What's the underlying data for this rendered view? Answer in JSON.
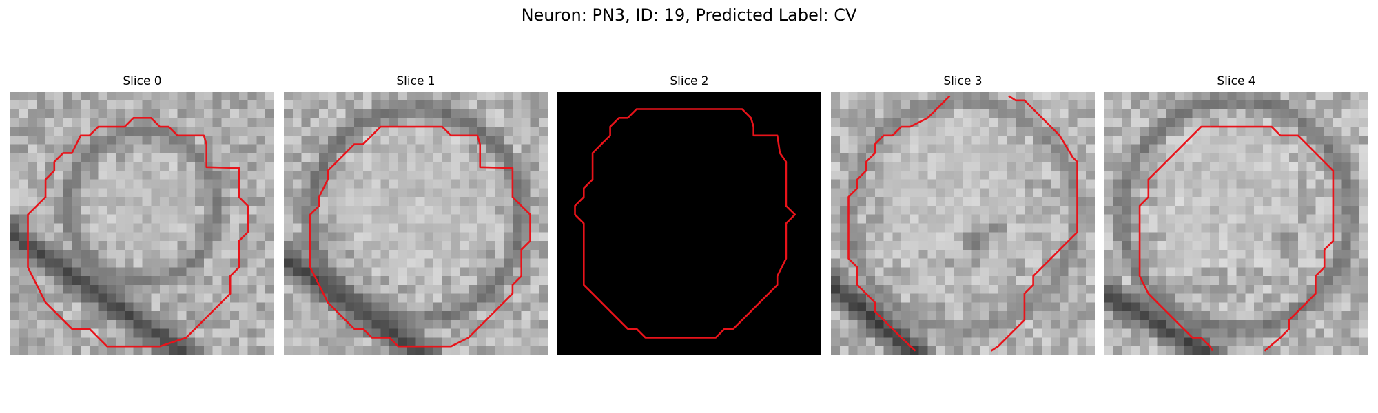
{
  "figure": {
    "title": "Neuron: PN3, ID: 19, Predicted Label: CV"
  },
  "contour_color": "#e8131a",
  "panels": [
    {
      "label": "Slice 0",
      "seed": 11,
      "base": 175,
      "darkBands": [
        {
          "type": "diag",
          "ax": 0,
          "ay": 16,
          "bx": 20,
          "by": 30,
          "w": 2.4,
          "val": 45
        },
        {
          "type": "ring",
          "cx": 15,
          "cy": 13,
          "r": 8.5,
          "w": 1.5,
          "val": 110
        }
      ],
      "brightCenter": {
        "cx": 15,
        "cy": 13,
        "r": 6,
        "val": 200
      },
      "contour": [
        [
          17,
          4
        ],
        [
          18,
          4
        ],
        [
          19,
          5
        ],
        [
          22,
          5
        ],
        [
          22.3,
          6
        ],
        [
          22.3,
          8.6
        ],
        [
          26,
          8.7
        ],
        [
          26,
          12
        ],
        [
          27,
          13
        ],
        [
          27,
          16
        ],
        [
          26,
          17
        ],
        [
          26,
          20
        ],
        [
          25,
          21
        ],
        [
          25,
          23
        ],
        [
          20,
          28
        ],
        [
          17,
          29
        ],
        [
          14,
          29
        ],
        [
          11,
          29
        ],
        [
          10,
          28
        ],
        [
          9,
          27
        ],
        [
          7,
          27
        ],
        [
          4,
          24
        ],
        [
          3,
          22
        ],
        [
          2,
          20
        ],
        [
          2,
          17
        ],
        [
          2,
          14
        ],
        [
          3,
          13
        ],
        [
          4,
          12
        ],
        [
          4,
          10
        ],
        [
          5,
          9
        ],
        [
          5,
          8
        ],
        [
          6,
          7
        ],
        [
          7,
          7
        ],
        [
          8,
          5
        ],
        [
          9,
          5
        ],
        [
          10,
          4
        ],
        [
          13,
          4
        ],
        [
          14,
          3
        ],
        [
          15,
          3
        ],
        [
          16,
          3
        ]
      ]
    },
    {
      "label": "Slice 1",
      "seed": 23,
      "base": 178,
      "darkBands": [
        {
          "type": "diag",
          "ax": 0,
          "ay": 19,
          "bx": 16,
          "by": 30,
          "w": 2.4,
          "val": 40
        },
        {
          "type": "ring",
          "cx": 15,
          "cy": 14,
          "r": 12,
          "w": 1.6,
          "val": 95
        }
      ],
      "brightCenter": {
        "cx": 15,
        "cy": 13,
        "r": 9,
        "val": 205
      },
      "contour": [
        [
          11,
          4
        ],
        [
          18,
          4
        ],
        [
          19,
          5
        ],
        [
          22,
          5
        ],
        [
          22.3,
          6
        ],
        [
          22.3,
          8.6
        ],
        [
          26,
          8.7
        ],
        [
          26,
          12
        ],
        [
          27,
          13
        ],
        [
          28,
          14
        ],
        [
          28,
          17
        ],
        [
          27,
          18
        ],
        [
          27,
          21
        ],
        [
          26,
          22
        ],
        [
          26,
          23
        ],
        [
          21,
          28
        ],
        [
          19,
          29
        ],
        [
          13,
          29
        ],
        [
          12,
          28
        ],
        [
          10,
          28
        ],
        [
          9,
          27
        ],
        [
          8,
          27
        ],
        [
          5,
          24
        ],
        [
          4,
          22
        ],
        [
          3,
          20
        ],
        [
          3,
          17
        ],
        [
          3,
          14
        ],
        [
          4,
          13
        ],
        [
          4,
          12
        ],
        [
          5,
          10
        ],
        [
          5,
          9
        ],
        [
          7,
          7
        ],
        [
          8,
          6
        ],
        [
          9,
          6
        ],
        [
          10,
          5
        ]
      ]
    },
    {
      "label": "Slice 2",
      "seed": 37,
      "base": 0,
      "dark": true,
      "darkBands": [],
      "brightCenter": null,
      "contour": [
        [
          10,
          2
        ],
        [
          21,
          2
        ],
        [
          22,
          3
        ],
        [
          22.3,
          4
        ],
        [
          22.3,
          5
        ],
        [
          25,
          5
        ],
        [
          25.3,
          7
        ],
        [
          26,
          8
        ],
        [
          26,
          10
        ],
        [
          26,
          13
        ],
        [
          27,
          14
        ],
        [
          26,
          15
        ],
        [
          26,
          17
        ],
        [
          26,
          19
        ],
        [
          25,
          21
        ],
        [
          25,
          22
        ],
        [
          23,
          24
        ],
        [
          22,
          25
        ],
        [
          21,
          26
        ],
        [
          20,
          27
        ],
        [
          19,
          27
        ],
        [
          18,
          28
        ],
        [
          17,
          28
        ],
        [
          16,
          28
        ],
        [
          10,
          28
        ],
        [
          9,
          27
        ],
        [
          8,
          27
        ],
        [
          6,
          25
        ],
        [
          4,
          23
        ],
        [
          3,
          22
        ],
        [
          3,
          20
        ],
        [
          3,
          19
        ],
        [
          3,
          15
        ],
        [
          2,
          14
        ],
        [
          2,
          13
        ],
        [
          3,
          12
        ],
        [
          3,
          11
        ],
        [
          4,
          10
        ],
        [
          4,
          8
        ],
        [
          4,
          7
        ],
        [
          5,
          6
        ],
        [
          6,
          5
        ],
        [
          6,
          4
        ],
        [
          7,
          3
        ],
        [
          8,
          3
        ],
        [
          9,
          2
        ]
      ]
    },
    {
      "label": "Slice 3",
      "seed": 51,
      "base": 180,
      "darkBands": [
        {
          "type": "diag",
          "ax": 0,
          "ay": 22,
          "bx": 10,
          "by": 30,
          "w": 2.5,
          "val": 35
        },
        {
          "type": "ring",
          "cx": 15,
          "cy": 14,
          "r": 13,
          "w": 1.4,
          "val": 120
        }
      ],
      "brightCenter": {
        "cx": 14,
        "cy": 11,
        "r": 8,
        "val": 210
      },
      "darkSpots": [
        {
          "cx": 16.5,
          "cy": 17,
          "r": 2.2,
          "val": 80
        },
        {
          "cx": 19,
          "cy": 15.5,
          "r": 1.5,
          "val": 95
        }
      ],
      "contour": [
        [
          13.5,
          0.5
        ],
        [
          13,
          1
        ],
        [
          11,
          3
        ],
        [
          9,
          4
        ],
        [
          8,
          4
        ],
        [
          7,
          5
        ],
        [
          6,
          5
        ],
        [
          5,
          6
        ],
        [
          5,
          7
        ],
        [
          4,
          8
        ],
        [
          4,
          9
        ],
        [
          3,
          10
        ],
        [
          3,
          11
        ],
        [
          2,
          12
        ],
        [
          2,
          19
        ],
        [
          3,
          20
        ],
        [
          3,
          22
        ],
        [
          5,
          24
        ],
        [
          5,
          25
        ],
        [
          6,
          26
        ],
        [
          7,
          27
        ],
        [
          8,
          28
        ],
        [
          9.6,
          29.5
        ]
      ]
    },
    {
      "label": "Slice 4",
      "seed": 67,
      "base": 182,
      "darkBands": [
        {
          "type": "diag",
          "ax": 0,
          "ay": 23,
          "bx": 12,
          "by": 30,
          "w": 2.3,
          "val": 40
        },
        {
          "type": "ring",
          "cx": 15,
          "cy": 14,
          "r": 13,
          "w": 1.6,
          "val": 100
        }
      ],
      "brightCenter": {
        "cx": 14,
        "cy": 12,
        "r": 8.5,
        "val": 210
      },
      "darkSpots": [
        {
          "cx": 20.5,
          "cy": 17,
          "r": 2,
          "val": 100
        }
      ],
      "contour": [
        [
          12,
          4
        ],
        [
          19,
          4
        ],
        [
          20,
          5
        ],
        [
          22,
          5
        ],
        [
          26,
          9
        ],
        [
          26,
          17
        ],
        [
          25,
          18
        ],
        [
          25,
          20
        ],
        [
          24,
          21
        ],
        [
          24,
          23
        ],
        [
          23,
          24
        ],
        [
          22,
          25
        ],
        [
          21,
          26
        ],
        [
          21,
          27
        ],
        [
          20,
          28
        ],
        [
          18.2,
          29.5
        ]
      ]
    }
  ],
  "slice3_right_contour": [
    [
      20.2,
      0.5
    ],
    [
      21,
      1
    ],
    [
      22,
      1
    ],
    [
      23,
      2
    ],
    [
      25,
      4
    ],
    [
      26,
      5
    ],
    [
      27.5,
      7.5
    ],
    [
      28,
      8
    ],
    [
      28,
      16
    ],
    [
      27,
      17
    ],
    [
      26,
      18
    ],
    [
      25,
      19
    ],
    [
      24,
      20
    ],
    [
      23,
      21
    ],
    [
      23,
      22
    ],
    [
      22,
      23
    ],
    [
      22,
      26
    ],
    [
      21,
      27
    ],
    [
      19,
      29
    ],
    [
      18.2,
      29.5
    ]
  ],
  "slice4_extra_contour": [
    [
      12.3,
      29.5
    ],
    [
      12,
      29
    ],
    [
      11,
      28
    ],
    [
      10,
      28
    ],
    [
      8,
      26
    ],
    [
      6,
      24
    ],
    [
      5,
      23
    ],
    [
      4,
      21
    ],
    [
      4,
      16
    ],
    [
      4,
      14
    ],
    [
      4,
      13
    ],
    [
      5,
      12
    ],
    [
      5,
      10
    ],
    [
      6,
      9
    ],
    [
      7,
      8
    ],
    [
      8,
      7
    ],
    [
      11,
      4
    ],
    [
      12,
      4
    ]
  ]
}
